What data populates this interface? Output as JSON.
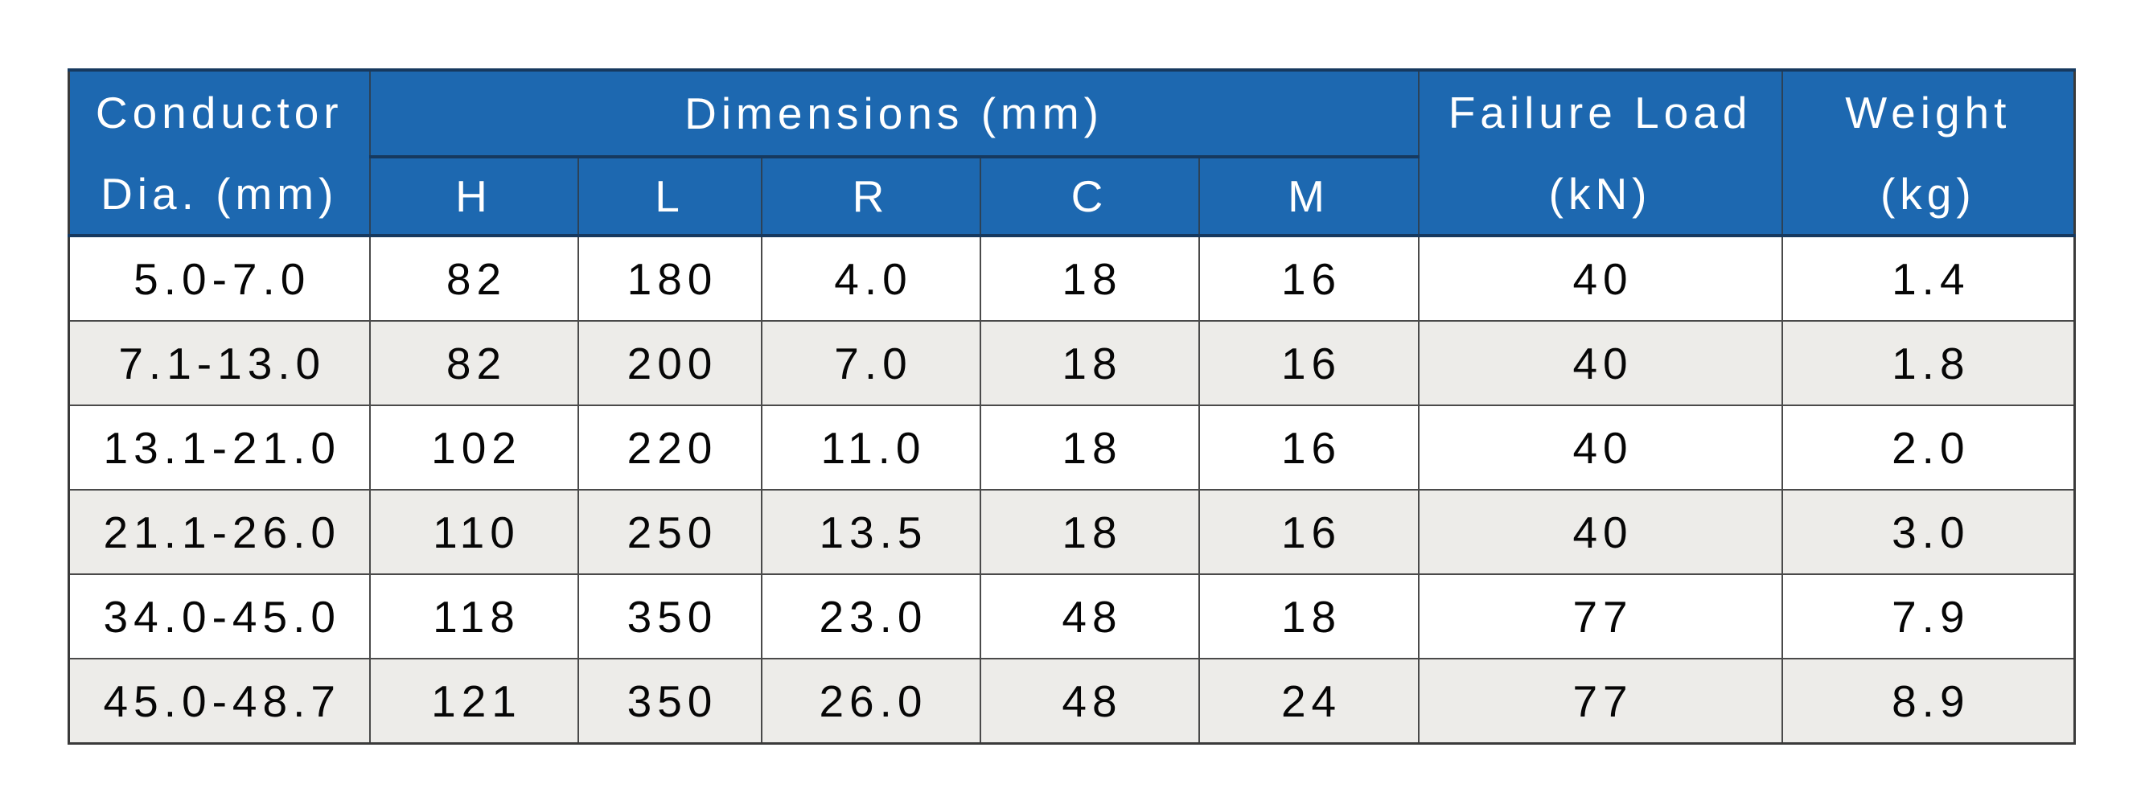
{
  "colors": {
    "header_bg": "#1d68b0",
    "header_text": "#ffffff",
    "navy_border": "#16395f",
    "grid_border": "#4a4a4a",
    "row_bg": "#ffffff",
    "row_alt_bg": "#edece9",
    "body_text": "#060606"
  },
  "chart_data": {
    "type": "table",
    "title": "",
    "columns": [
      "Conductor Dia. (mm)",
      "H",
      "L",
      "R",
      "C",
      "M",
      "Failure Load (kN)",
      "Weight (kg)"
    ],
    "rows": [
      [
        "5.0-7.0",
        82,
        180,
        4.0,
        18,
        16,
        40,
        1.4
      ],
      [
        "7.1-13.0",
        82,
        200,
        7.0,
        18,
        16,
        40,
        1.8
      ],
      [
        "13.1-21.0",
        102,
        220,
        11.0,
        18,
        16,
        40,
        2.0
      ],
      [
        "21.1-26.0",
        110,
        250,
        13.5,
        18,
        16,
        40,
        3.0
      ],
      [
        "34.0-45.0",
        118,
        350,
        23.0,
        48,
        18,
        77,
        7.9
      ],
      [
        "45.0-48.7",
        121,
        350,
        26.0,
        48,
        24,
        77,
        8.9
      ]
    ]
  },
  "table": {
    "header": {
      "conductor": {
        "line1": "Conductor",
        "line2": "Dia. (mm)"
      },
      "dimensions": {
        "label": "Dimensions (mm)",
        "sub": [
          "H",
          "L",
          "R",
          "C",
          "M"
        ]
      },
      "failure_load": {
        "line1": "Failure Load",
        "line2": "(kN)"
      },
      "weight": {
        "line1": "Weight",
        "line2": "(kg)"
      }
    },
    "rows": [
      {
        "cells": [
          "5.0-7.0",
          "82",
          "180",
          "4.0",
          "18",
          "16",
          "40",
          "1.4"
        ]
      },
      {
        "cells": [
          "7.1-13.0",
          "82",
          "200",
          "7.0",
          "18",
          "16",
          "40",
          "1.8"
        ]
      },
      {
        "cells": [
          "13.1-21.0",
          "102",
          "220",
          "11.0",
          "18",
          "16",
          "40",
          "2.0"
        ]
      },
      {
        "cells": [
          "21.1-26.0",
          "110",
          "250",
          "13.5",
          "18",
          "16",
          "40",
          "3.0"
        ]
      },
      {
        "cells": [
          "34.0-45.0",
          "118",
          "350",
          "23.0",
          "48",
          "18",
          "77",
          "7.9"
        ]
      },
      {
        "cells": [
          "45.0-48.7",
          "121",
          "350",
          "26.0",
          "48",
          "24",
          "77",
          "8.9"
        ]
      }
    ]
  }
}
